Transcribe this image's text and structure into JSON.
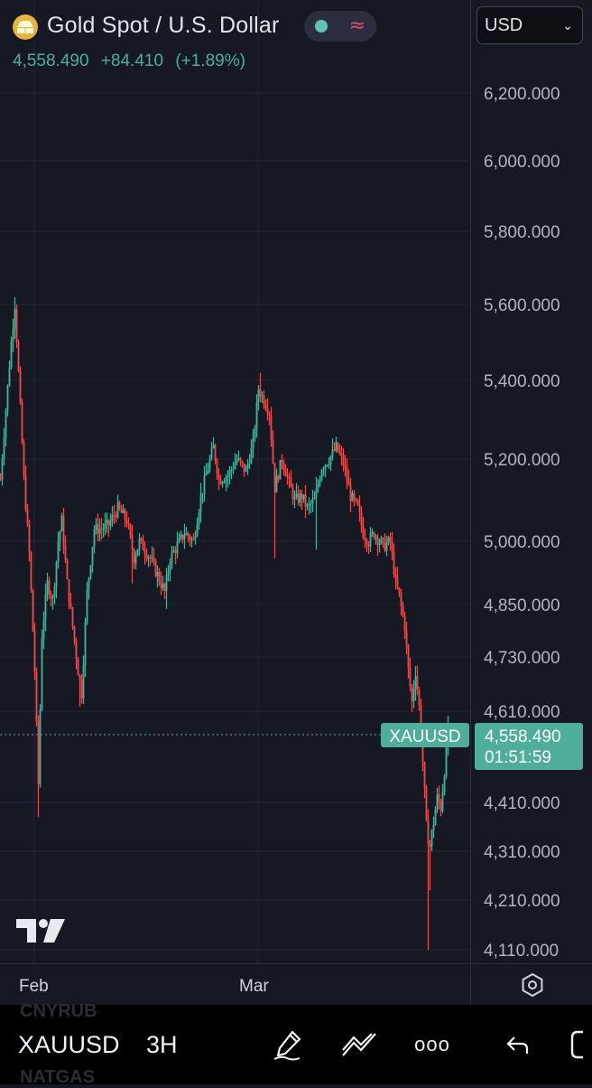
{
  "header": {
    "title": "Gold Spot / U.S. Dollar",
    "last_price": "4,558.490",
    "change": "+84.410",
    "change_pct": "(+1.89%)",
    "currency": "USD",
    "status_wave": "≈"
  },
  "price_tag": {
    "symbol": "XAUUSD",
    "price": "4,558.490",
    "countdown": "01:51:59"
  },
  "y_axis_labels": [
    "6,200.000",
    "6,000.000",
    "5,800.000",
    "5,600.000",
    "5,400.000",
    "5,200.000",
    "5,000.000",
    "4,850.000",
    "4,730.000",
    "4,610.000",
    "4,410.000",
    "4,310.000",
    "4,210.000",
    "4,110.000"
  ],
  "x_axis_labels": [
    "Feb",
    "Mar"
  ],
  "bottom_bar": {
    "symbol": "XAUUSD",
    "interval": "3H",
    "ghost_top": "CNYRUB",
    "ghost_bottom": "NATGAS",
    "more": "ooo"
  },
  "colors": {
    "up": "#4fae9b",
    "down": "#e0514f",
    "background": "#161824",
    "grid": "#242734",
    "price_tag": "#4fae9b"
  },
  "chart_data": {
    "type": "candlestick",
    "title": "Gold Spot / U.S. Dollar",
    "symbol": "XAUUSD",
    "interval": "3H",
    "ylabel": "",
    "xlabel": "",
    "ylim": [
      4080,
      6300
    ],
    "last_price": 4558.49,
    "grid": true,
    "path": [
      [
        0,
        5150
      ],
      [
        12,
        5500
      ],
      [
        16,
        5600
      ],
      [
        20,
        5420
      ],
      [
        26,
        5150
      ],
      [
        32,
        4970
      ],
      [
        38,
        4700
      ],
      [
        42,
        4450
      ],
      [
        46,
        4780
      ],
      [
        52,
        4900
      ],
      [
        58,
        4860
      ],
      [
        64,
        5000
      ],
      [
        68,
        5050
      ],
      [
        74,
        4900
      ],
      [
        80,
        4800
      ],
      [
        86,
        4700
      ],
      [
        90,
        4650
      ],
      [
        96,
        4880
      ],
      [
        104,
        5030
      ],
      [
        112,
        5030
      ],
      [
        120,
        5040
      ],
      [
        130,
        5080
      ],
      [
        140,
        5050
      ],
      [
        148,
        4960
      ],
      [
        154,
        5000
      ],
      [
        160,
        4980
      ],
      [
        166,
        4960
      ],
      [
        174,
        4920
      ],
      [
        182,
        4880
      ],
      [
        188,
        4960
      ],
      [
        196,
        4990
      ],
      [
        204,
        5020
      ],
      [
        214,
        5000
      ],
      [
        222,
        5110
      ],
      [
        230,
        5180
      ],
      [
        236,
        5230
      ],
      [
        242,
        5150
      ],
      [
        252,
        5160
      ],
      [
        262,
        5200
      ],
      [
        272,
        5170
      ],
      [
        280,
        5240
      ],
      [
        286,
        5380
      ],
      [
        292,
        5350
      ],
      [
        298,
        5320
      ],
      [
        304,
        5130
      ],
      [
        312,
        5200
      ],
      [
        320,
        5140
      ],
      [
        326,
        5100
      ],
      [
        334,
        5110
      ],
      [
        340,
        5080
      ],
      [
        348,
        5100
      ],
      [
        356,
        5180
      ],
      [
        364,
        5200
      ],
      [
        372,
        5230
      ],
      [
        380,
        5190
      ],
      [
        388,
        5110
      ],
      [
        396,
        5080
      ],
      [
        402,
        5020
      ],
      [
        408,
        5000
      ],
      [
        414,
        5020
      ],
      [
        420,
        5000
      ],
      [
        426,
        4990
      ],
      [
        432,
        5000
      ],
      [
        438,
        4900
      ],
      [
        442,
        4870
      ],
      [
        448,
        4800
      ],
      [
        452,
        4700
      ],
      [
        456,
        4630
      ],
      [
        460,
        4700
      ],
      [
        464,
        4620
      ],
      [
        468,
        4500
      ],
      [
        472,
        4360
      ],
      [
        476,
        4320
      ],
      [
        480,
        4370
      ],
      [
        484,
        4420
      ],
      [
        488,
        4400
      ],
      [
        492,
        4480
      ],
      [
        496,
        4558.49
      ]
    ],
    "spikes": [
      [
        16,
        5620
      ],
      [
        42,
        4380
      ],
      [
        88,
        4620
      ],
      [
        146,
        4900
      ],
      [
        184,
        4840
      ],
      [
        288,
        5420
      ],
      [
        304,
        4960
      ],
      [
        350,
        4980
      ],
      [
        408,
        4970
      ],
      [
        474,
        4110
      ],
      [
        476,
        4230
      ],
      [
        496,
        4600
      ]
    ]
  }
}
